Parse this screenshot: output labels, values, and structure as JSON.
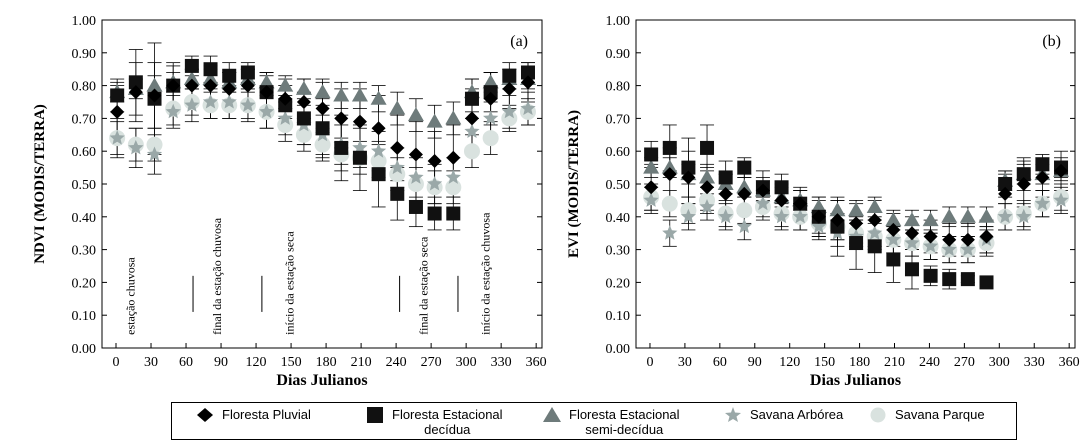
{
  "colors": {
    "floresta_pluvial": "#000000",
    "floresta_decidua": "#111111",
    "floresta_semidecidua": "#6e7b7b",
    "savana_arborea": "#9aa8a8",
    "savana_parque": "#d9e2df"
  },
  "legend": [
    {
      "label": "Floresta Pluvial",
      "marker": "diamond",
      "color": "#000000"
    },
    {
      "label": "Floresta Estacional\ndecídua",
      "marker": "square",
      "color": "#111111"
    },
    {
      "label": "Floresta Estacional\nsemi-decídua",
      "marker": "triangle",
      "color": "#6e7b7b"
    },
    {
      "label": "Savana Arbórea",
      "marker": "star",
      "color": "#9aa8a8"
    },
    {
      "label": "Savana Parque",
      "marker": "circle",
      "color": "#d9e2df"
    }
  ],
  "chart_data": [
    {
      "type": "scatter",
      "panel_label": "(a)",
      "xlabel": "Dias Julianos",
      "ylabel": "NDVI (MODIS/TERRA)",
      "xlim": [
        -12,
        365
      ],
      "ylim": [
        0,
        1
      ],
      "xticks": [
        0,
        30,
        60,
        90,
        120,
        150,
        180,
        210,
        240,
        270,
        300,
        330,
        360
      ],
      "yticks": [
        "0.00",
        "0.10",
        "0.20",
        "0.30",
        "0.40",
        "0.50",
        "0.60",
        "0.70",
        "0.80",
        "0.90",
        "1.00"
      ],
      "annotations": [
        {
          "text": "estação chuvosa",
          "x": 16,
          "marker_x": null
        },
        {
          "text": "final da estação chuvosa",
          "x": 90,
          "marker_x": 66
        },
        {
          "text": "início da estação seca",
          "x": 152,
          "marker_x": 125
        },
        {
          "text": "final da estação seca",
          "x": 267,
          "marker_x": 243
        },
        {
          "text": "início da estação chuvosa",
          "x": 320,
          "marker_x": 293
        }
      ],
      "x": [
        1,
        17,
        33,
        49,
        65,
        81,
        97,
        113,
        129,
        145,
        161,
        177,
        193,
        209,
        225,
        241,
        257,
        273,
        289,
        305,
        321,
        337,
        353
      ],
      "series": [
        {
          "name": "Floresta Pluvial",
          "marker": "diamond",
          "values": [
            0.72,
            0.78,
            0.77,
            0.8,
            0.8,
            0.8,
            0.79,
            0.8,
            0.78,
            0.76,
            0.75,
            0.73,
            0.7,
            0.69,
            0.67,
            0.61,
            0.59,
            0.57,
            0.58,
            0.7,
            0.76,
            0.79,
            0.81
          ],
          "err": [
            0.08,
            0.09,
            0.1,
            0.07,
            0.05,
            0.06,
            0.05,
            0.05,
            0.06,
            0.06,
            0.07,
            0.08,
            0.09,
            0.1,
            0.1,
            0.1,
            0.1,
            0.09,
            0.1,
            0.09,
            0.08,
            0.06,
            0.06
          ]
        },
        {
          "name": "Floresta Estacional decídua",
          "marker": "square",
          "values": [
            0.77,
            0.81,
            0.76,
            0.8,
            0.86,
            0.85,
            0.83,
            0.84,
            0.78,
            0.74,
            0.7,
            0.67,
            0.61,
            0.58,
            0.53,
            0.47,
            0.43,
            0.41,
            0.41,
            0.76,
            0.78,
            0.83,
            0.84
          ],
          "err": [
            0.05,
            0.1,
            0.17,
            0.06,
            0.03,
            0.04,
            0.04,
            0.03,
            0.05,
            0.06,
            0.08,
            0.09,
            0.1,
            0.1,
            0.1,
            0.08,
            0.06,
            0.05,
            0.05,
            0.06,
            0.06,
            0.04,
            0.03
          ]
        },
        {
          "name": "Floresta Estacional semi-decídua",
          "marker": "triangle",
          "values": [
            0.78,
            0.79,
            0.8,
            0.81,
            0.82,
            0.82,
            0.81,
            0.82,
            0.81,
            0.8,
            0.79,
            0.78,
            0.77,
            0.77,
            0.76,
            0.73,
            0.71,
            0.69,
            0.7,
            0.78,
            0.81,
            0.82,
            0.82
          ],
          "err": [
            0.03,
            0.03,
            0.03,
            0.03,
            0.03,
            0.03,
            0.03,
            0.03,
            0.03,
            0.03,
            0.03,
            0.04,
            0.04,
            0.04,
            0.04,
            0.05,
            0.05,
            0.05,
            0.05,
            0.04,
            0.03,
            0.03,
            0.03
          ]
        },
        {
          "name": "Savana Arbórea",
          "marker": "star",
          "values": [
            0.64,
            0.61,
            0.59,
            0.72,
            0.74,
            0.75,
            0.75,
            0.74,
            0.72,
            0.7,
            0.68,
            0.65,
            0.62,
            0.61,
            0.6,
            0.55,
            0.52,
            0.5,
            0.52,
            0.66,
            0.7,
            0.72,
            0.73
          ],
          "err": [
            0.06,
            0.06,
            0.06,
            0.05,
            0.05,
            0.05,
            0.05,
            0.05,
            0.05,
            0.05,
            0.06,
            0.06,
            0.06,
            0.06,
            0.06,
            0.06,
            0.06,
            0.06,
            0.06,
            0.06,
            0.05,
            0.05,
            0.05
          ]
        },
        {
          "name": "Savana Parque",
          "marker": "circle",
          "values": [
            0.64,
            0.62,
            0.62,
            0.73,
            0.75,
            0.74,
            0.74,
            0.74,
            0.72,
            0.68,
            0.65,
            0.62,
            0.59,
            0.58,
            0.57,
            0.53,
            0.5,
            0.49,
            0.49,
            0.6,
            0.64,
            0.7,
            0.72
          ],
          "err": [
            0.05,
            0.05,
            0.05,
            0.05,
            0.04,
            0.04,
            0.04,
            0.04,
            0.05,
            0.05,
            0.05,
            0.05,
            0.05,
            0.05,
            0.05,
            0.05,
            0.05,
            0.05,
            0.05,
            0.05,
            0.05,
            0.04,
            0.04
          ]
        }
      ]
    },
    {
      "type": "scatter",
      "panel_label": "(b)",
      "xlabel": "Dias Julianos",
      "ylabel": "EVI (MODIS/TERRA)",
      "xlim": [
        -12,
        365
      ],
      "ylim": [
        0,
        1
      ],
      "xticks": [
        0,
        30,
        60,
        90,
        120,
        150,
        180,
        210,
        240,
        270,
        300,
        330,
        360
      ],
      "yticks": [
        "0.00",
        "0.10",
        "0.20",
        "0.30",
        "0.40",
        "0.50",
        "0.60",
        "0.70",
        "0.80",
        "0.90",
        "1.00"
      ],
      "annotations": [],
      "x": [
        1,
        17,
        33,
        49,
        65,
        81,
        97,
        113,
        129,
        145,
        161,
        177,
        193,
        209,
        225,
        241,
        257,
        273,
        289,
        305,
        321,
        337,
        353
      ],
      "series": [
        {
          "name": "Floresta Pluvial",
          "marker": "diamond",
          "values": [
            0.49,
            0.53,
            0.52,
            0.49,
            0.47,
            0.47,
            0.48,
            0.45,
            0.44,
            0.4,
            0.39,
            0.38,
            0.39,
            0.36,
            0.35,
            0.34,
            0.33,
            0.33,
            0.34,
            0.47,
            0.5,
            0.52,
            0.54
          ],
          "err": [
            0.07,
            0.08,
            0.08,
            0.07,
            0.06,
            0.06,
            0.06,
            0.05,
            0.05,
            0.05,
            0.06,
            0.06,
            0.06,
            0.05,
            0.05,
            0.05,
            0.05,
            0.05,
            0.05,
            0.06,
            0.07,
            0.06,
            0.06
          ]
        },
        {
          "name": "Floresta Estacional decídua",
          "marker": "square",
          "values": [
            0.59,
            0.61,
            0.55,
            0.61,
            0.52,
            0.55,
            0.49,
            0.49,
            0.44,
            0.4,
            0.37,
            0.32,
            0.31,
            0.27,
            0.24,
            0.22,
            0.21,
            0.21,
            0.2,
            0.5,
            0.53,
            0.56,
            0.55
          ],
          "err": [
            0.04,
            0.07,
            0.09,
            0.07,
            0.05,
            0.03,
            0.03,
            0.04,
            0.04,
            0.06,
            0.09,
            0.08,
            0.08,
            0.07,
            0.06,
            0.03,
            0.03,
            0.01,
            0.01,
            0.04,
            0.05,
            0.03,
            0.03
          ]
        },
        {
          "name": "Floresta Estacional semi-decídua",
          "marker": "triangle",
          "values": [
            0.55,
            0.55,
            0.53,
            0.52,
            0.5,
            0.49,
            0.48,
            0.46,
            0.45,
            0.43,
            0.42,
            0.42,
            0.43,
            0.39,
            0.39,
            0.39,
            0.4,
            0.4,
            0.4,
            0.51,
            0.53,
            0.53,
            0.54
          ],
          "err": [
            0.03,
            0.03,
            0.03,
            0.03,
            0.03,
            0.03,
            0.03,
            0.03,
            0.03,
            0.03,
            0.03,
            0.03,
            0.03,
            0.03,
            0.03,
            0.03,
            0.03,
            0.03,
            0.03,
            0.03,
            0.03,
            0.03,
            0.03
          ]
        },
        {
          "name": "Savana Arbórea",
          "marker": "star",
          "values": [
            0.45,
            0.35,
            0.4,
            0.43,
            0.4,
            0.37,
            0.44,
            0.4,
            0.4,
            0.37,
            0.35,
            0.34,
            0.35,
            0.33,
            0.32,
            0.31,
            0.3,
            0.3,
            0.33,
            0.4,
            0.4,
            0.44,
            0.45
          ],
          "err": [
            0.04,
            0.04,
            0.04,
            0.04,
            0.04,
            0.04,
            0.04,
            0.04,
            0.04,
            0.04,
            0.04,
            0.04,
            0.04,
            0.04,
            0.04,
            0.04,
            0.04,
            0.04,
            0.04,
            0.04,
            0.04,
            0.04,
            0.04
          ]
        },
        {
          "name": "Savana Parque",
          "marker": "circle",
          "values": [
            0.46,
            0.44,
            0.42,
            0.45,
            0.41,
            0.42,
            0.43,
            0.41,
            0.4,
            0.38,
            0.37,
            0.35,
            0.34,
            0.33,
            0.32,
            0.31,
            0.3,
            0.3,
            0.32,
            0.4,
            0.41,
            0.44,
            0.46
          ],
          "err": [
            0.04,
            0.04,
            0.04,
            0.04,
            0.04,
            0.04,
            0.04,
            0.04,
            0.04,
            0.04,
            0.04,
            0.04,
            0.04,
            0.04,
            0.04,
            0.04,
            0.04,
            0.04,
            0.04,
            0.04,
            0.04,
            0.04,
            0.04
          ]
        }
      ]
    }
  ]
}
